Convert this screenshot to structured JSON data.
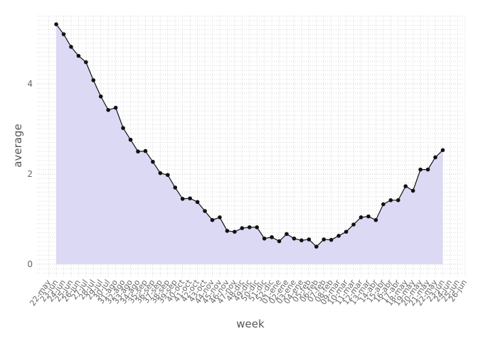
{
  "chart_data": {
    "type": "area-line",
    "x_label": "week",
    "y_label": "average",
    "categories": [
      "22-may",
      "23-jun",
      "24-jun",
      "25-jun",
      "26-jun",
      "27-jul",
      "28-jul",
      "29-jul",
      "30-jul",
      "31-ago",
      "32-ago",
      "33-ago",
      "34-ago",
      "35-sep",
      "36-sep",
      "37-sep",
      "38-sep",
      "39-sep",
      "40-oct",
      "41-oct",
      "42-oct",
      "43-oct",
      "44-nov",
      "45-nov",
      "46-nov",
      "47-nov",
      "48-dic",
      "49-dic",
      "50-dic",
      "51-dic",
      "52-dic",
      "01-ene",
      "02-ene",
      "03-ene",
      "04-ene",
      "05-feb",
      "06-feb",
      "07-feb",
      "08-feb",
      "09-mar",
      "10-mar",
      "11-mar",
      "12-mar",
      "13-mar",
      "14-abr",
      "15-abr",
      "16-abr",
      "17-abr",
      "18-may",
      "19-may",
      "20-may",
      "21-may",
      "22-may",
      "23-jun",
      "24-jun",
      "25-jun",
      "26-jun"
    ],
    "values": [
      null,
      5.32,
      5.1,
      4.82,
      4.62,
      4.48,
      4.08,
      3.72,
      3.42,
      3.47,
      3.02,
      2.76,
      2.5,
      2.51,
      2.27,
      2.02,
      1.98,
      1.7,
      1.45,
      1.46,
      1.38,
      1.18,
      0.98,
      1.04,
      0.74,
      0.72,
      0.8,
      0.82,
      0.82,
      0.57,
      0.6,
      0.51,
      0.67,
      0.57,
      0.53,
      0.55,
      0.39,
      0.55,
      0.54,
      0.63,
      0.72,
      0.88,
      1.04,
      1.06,
      0.98,
      1.33,
      1.42,
      1.42,
      1.73,
      1.63,
      2.1,
      2.1,
      2.37,
      2.53,
      null,
      null,
      null
    ],
    "color": "#111111",
    "fill": "#dcd9f5",
    "ylim": [
      -0.3,
      5.5
    ],
    "yticks": [
      0,
      2,
      4
    ],
    "grid": true
  }
}
